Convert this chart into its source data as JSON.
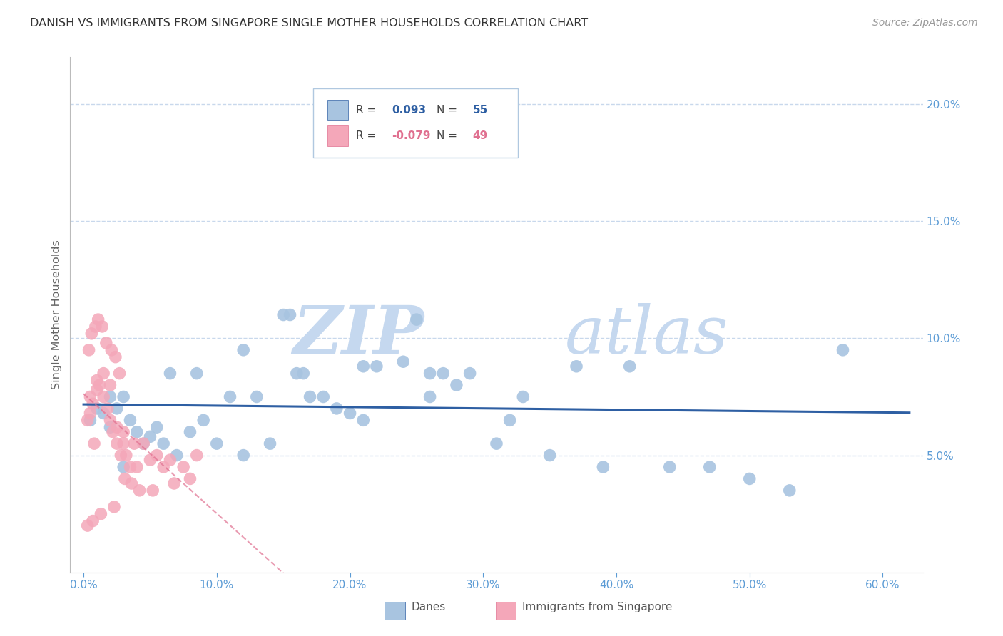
{
  "title": "DANISH VS IMMIGRANTS FROM SINGAPORE SINGLE MOTHER HOUSEHOLDS CORRELATION CHART",
  "source": "Source: ZipAtlas.com",
  "ylabel": "Single Mother Households",
  "xlabel_ticks": [
    "0.0%",
    "10.0%",
    "20.0%",
    "30.0%",
    "40.0%",
    "50.0%",
    "60.0%"
  ],
  "xlabel_vals": [
    0,
    10,
    20,
    30,
    40,
    50,
    60
  ],
  "ylabel_ticks": [
    "5.0%",
    "10.0%",
    "15.0%",
    "20.0%"
  ],
  "ylabel_vals": [
    5,
    10,
    15,
    20
  ],
  "ylim": [
    0,
    22
  ],
  "xlim": [
    -1,
    63
  ],
  "blue_R": 0.093,
  "blue_N": 55,
  "pink_R": -0.079,
  "pink_N": 49,
  "blue_color": "#a8c4e0",
  "blue_line_color": "#2e5fa3",
  "pink_color": "#f4a7b9",
  "pink_line_color": "#e07090",
  "watermark_zip": "ZIP",
  "watermark_atlas": "atlas",
  "watermark_color": "#ddeeff",
  "background_color": "#ffffff",
  "grid_color": "#c8d8ec",
  "title_color": "#333333",
  "tick_color": "#5b9bd5",
  "legend_edge_color": "#b0c8e0",
  "blue_scatter_x": [
    0.5,
    1.0,
    1.5,
    2.0,
    2.5,
    3.0,
    3.5,
    4.0,
    4.5,
    5.0,
    5.5,
    6.0,
    7.0,
    8.0,
    9.0,
    10.0,
    11.0,
    12.0,
    13.0,
    14.0,
    15.0,
    15.5,
    16.0,
    17.0,
    18.0,
    19.0,
    20.0,
    21.0,
    22.0,
    24.0,
    25.0,
    26.0,
    27.0,
    28.0,
    29.0,
    31.0,
    33.0,
    35.0,
    37.0,
    39.0,
    41.0,
    44.0,
    47.0,
    50.0,
    53.0,
    57.0,
    2.0,
    3.0,
    6.5,
    8.5,
    12.0,
    16.5,
    21.0,
    26.0,
    32.0
  ],
  "blue_scatter_y": [
    6.5,
    7.0,
    6.8,
    6.2,
    7.0,
    7.5,
    6.5,
    6.0,
    5.5,
    5.8,
    6.2,
    5.5,
    5.0,
    6.0,
    6.5,
    5.5,
    7.5,
    5.0,
    7.5,
    5.5,
    11.0,
    11.0,
    8.5,
    7.5,
    7.5,
    7.0,
    6.8,
    6.5,
    8.8,
    9.0,
    10.8,
    8.5,
    8.5,
    8.0,
    8.5,
    5.5,
    7.5,
    5.0,
    8.8,
    4.5,
    8.8,
    4.5,
    4.5,
    4.0,
    3.5,
    9.5,
    7.5,
    4.5,
    8.5,
    8.5,
    9.5,
    8.5,
    8.8,
    7.5,
    6.5
  ],
  "pink_scatter_x": [
    0.3,
    0.5,
    0.5,
    0.7,
    0.8,
    1.0,
    1.0,
    1.2,
    1.5,
    1.5,
    1.8,
    2.0,
    2.0,
    2.2,
    2.5,
    2.5,
    2.8,
    3.0,
    3.0,
    3.2,
    3.5,
    3.8,
    4.0,
    4.5,
    5.0,
    5.5,
    6.0,
    6.5,
    7.5,
    8.5,
    0.4,
    0.6,
    0.9,
    1.1,
    1.4,
    1.7,
    2.1,
    2.4,
    2.7,
    3.1,
    3.6,
    4.2,
    5.2,
    6.8,
    8.0,
    0.3,
    0.7,
    1.3,
    2.3
  ],
  "pink_scatter_y": [
    6.5,
    6.8,
    7.5,
    7.2,
    5.5,
    7.8,
    8.2,
    8.0,
    7.5,
    8.5,
    7.0,
    8.0,
    6.5,
    6.0,
    5.5,
    6.2,
    5.0,
    5.5,
    6.0,
    5.0,
    4.5,
    5.5,
    4.5,
    5.5,
    4.8,
    5.0,
    4.5,
    4.8,
    4.5,
    5.0,
    9.5,
    10.2,
    10.5,
    10.8,
    10.5,
    9.8,
    9.5,
    9.2,
    8.5,
    4.0,
    3.8,
    3.5,
    3.5,
    3.8,
    4.0,
    2.0,
    2.2,
    2.5,
    2.8
  ]
}
